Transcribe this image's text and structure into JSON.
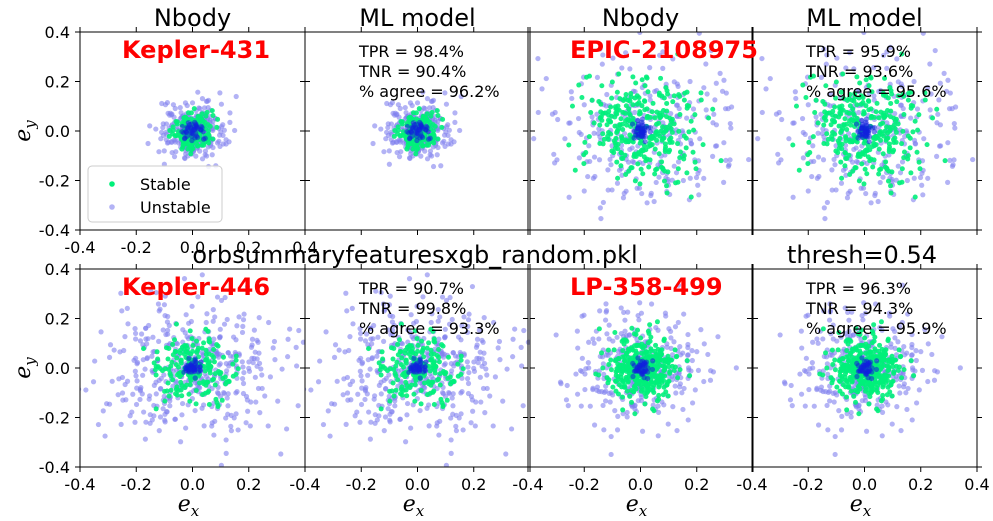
{
  "colors": {
    "stable": "#00f07a",
    "unstable": "#8080ee",
    "dense": "#1020dd",
    "system_name": "#ff0000"
  },
  "figure": {
    "sup_title_left": "orbsummaryfeaturesxgb_random.pkl",
    "sup_title_right": "thresh=0.54",
    "ylabel_main": "e",
    "ylabel_sub": "y",
    "xlabel_main": "e",
    "xlabel_sub": "x",
    "legend": {
      "stable": "Stable",
      "unstable": "Unstable"
    }
  },
  "chart_data": [
    {
      "type": "scatter",
      "row": 0,
      "col": 0,
      "title": "Nbody",
      "system": "Kepler-431",
      "spread": 0.05,
      "cluster_spread": 0.035,
      "n": 450,
      "stable_frac": 0.4,
      "xlim": [
        -0.4,
        0.4
      ],
      "ylim": [
        -0.4,
        0.4
      ],
      "xticks": [
        -0.4,
        -0.2,
        0.0,
        0.2,
        0.4
      ],
      "yticks": [
        -0.4,
        -0.2,
        0.0,
        0.2,
        0.4
      ]
    },
    {
      "type": "scatter",
      "row": 0,
      "col": 1,
      "title": "ML model",
      "tpr": "TPR = 98.4%",
      "tnr": "TNR = 90.4%",
      "agree": "% agree = 96.2%",
      "spread": 0.05,
      "cluster_spread": 0.035,
      "n": 450,
      "stable_frac": 0.4,
      "xlim": [
        -0.4,
        0.4
      ],
      "ylim": [
        -0.4,
        0.4
      ]
    },
    {
      "type": "scatter",
      "row": 0,
      "col": 2,
      "title": "Nbody",
      "system": "EPIC-2108975",
      "spread": 0.15,
      "cluster_spread": 0.1,
      "n": 600,
      "stable_frac": 0.5,
      "xlim": [
        -0.4,
        0.4
      ],
      "ylim": [
        -0.4,
        0.4
      ]
    },
    {
      "type": "scatter",
      "row": 0,
      "col": 3,
      "title": "ML model",
      "tpr": "TPR = 95.9%",
      "tnr": "TNR = 93.6%",
      "agree": "% agree = 95.6%",
      "spread": 0.15,
      "cluster_spread": 0.1,
      "n": 600,
      "stable_frac": 0.5,
      "xlim": [
        -0.4,
        0.4
      ],
      "ylim": [
        -0.4,
        0.4
      ]
    },
    {
      "type": "scatter",
      "row": 1,
      "col": 0,
      "system": "Kepler-446",
      "spread": 0.12,
      "cluster_spread": 0.07,
      "n": 600,
      "stable_frac": 0.3,
      "xlim": [
        -0.4,
        0.4
      ],
      "ylim": [
        -0.4,
        0.4
      ],
      "xticks": [
        -0.4,
        -0.2,
        0.0,
        0.2
      ],
      "yticks": [
        -0.4,
        -0.2,
        0.0,
        0.2,
        0.4
      ]
    },
    {
      "type": "scatter",
      "row": 1,
      "col": 1,
      "tpr": "TPR = 90.7%",
      "tnr": "TNR = 99.8%",
      "agree": "% agree = 93.3%",
      "spread": 0.12,
      "cluster_spread": 0.07,
      "n": 600,
      "stable_frac": 0.3,
      "xlim": [
        -0.4,
        0.4
      ],
      "ylim": [
        -0.4,
        0.4
      ],
      "xticks": [
        -0.4,
        -0.2,
        0.0,
        0.2
      ]
    },
    {
      "type": "scatter",
      "row": 1,
      "col": 2,
      "system": "LP-358-499",
      "spread": 0.1,
      "cluster_spread": 0.06,
      "n": 700,
      "stable_frac": 0.55,
      "xlim": [
        -0.4,
        0.4
      ],
      "ylim": [
        -0.4,
        0.4
      ],
      "xticks": [
        -0.4,
        -0.2,
        0.0,
        0.2
      ]
    },
    {
      "type": "scatter",
      "row": 1,
      "col": 3,
      "tpr": "TPR = 96.3%",
      "tnr": "TNR = 94.3%",
      "agree": "% agree = 95.9%",
      "spread": 0.1,
      "cluster_spread": 0.06,
      "n": 700,
      "stable_frac": 0.55,
      "xlim": [
        -0.4,
        0.4
      ],
      "ylim": [
        -0.4,
        0.4
      ],
      "xticks": [
        -0.4,
        -0.2,
        0.0,
        0.2,
        0.4
      ]
    }
  ]
}
